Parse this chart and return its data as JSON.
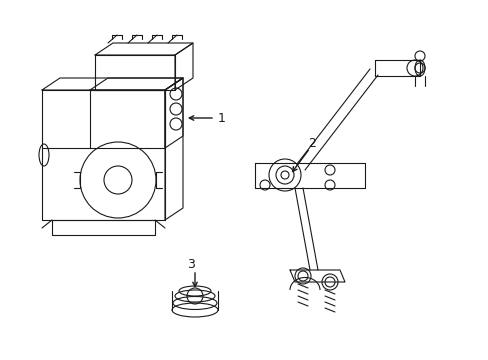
{
  "background_color": "#ffffff",
  "line_color": "#1a1a1a",
  "line_width": 0.8,
  "label_fontsize": 9,
  "fig_width": 4.89,
  "fig_height": 3.6,
  "dpi": 100
}
